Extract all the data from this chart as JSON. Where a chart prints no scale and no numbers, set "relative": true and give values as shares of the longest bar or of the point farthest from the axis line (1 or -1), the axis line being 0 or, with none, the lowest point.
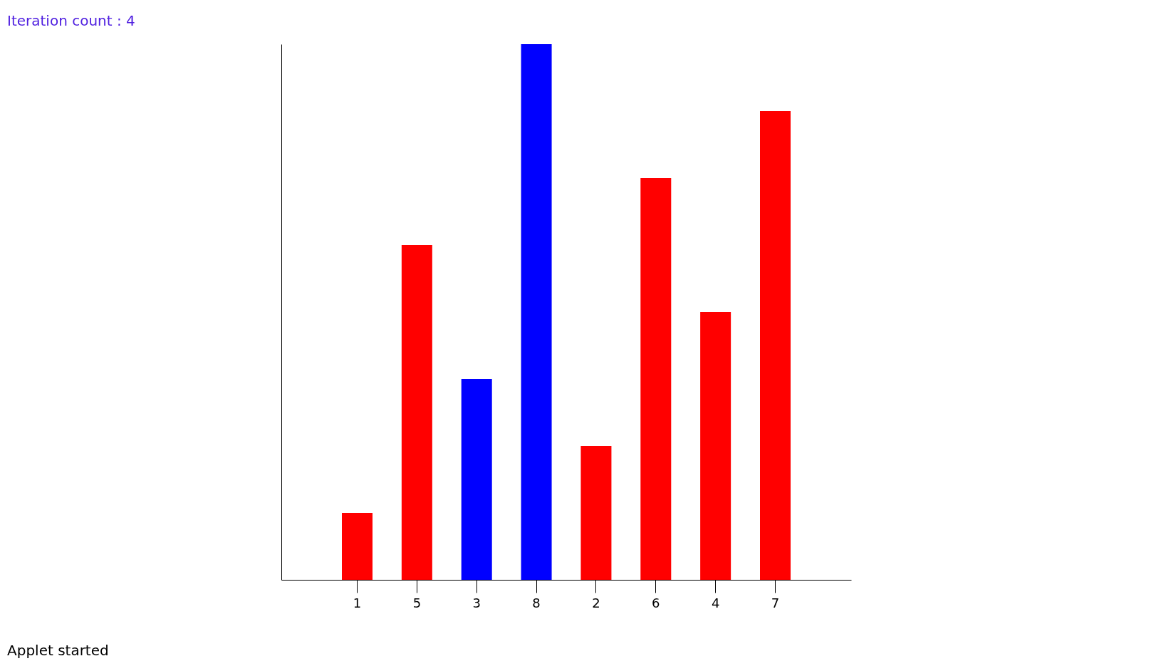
{
  "chart_data": {
    "type": "bar",
    "title": "Iteration count : 4",
    "categories": [
      "1",
      "5",
      "3",
      "8",
      "2",
      "6",
      "4",
      "7"
    ],
    "values": [
      0.125,
      0.625,
      0.375,
      1,
      0.25,
      0.75,
      0.5,
      0.875
    ],
    "colors": [
      "#ff0000",
      "#ff0000",
      "#0000ff",
      "#0000ff",
      "#ff0000",
      "#ff0000",
      "#ff0000",
      "#ff0000"
    ],
    "relative": true,
    "tick_labels": "x",
    "annotations": [
      "Applet started"
    ]
  }
}
